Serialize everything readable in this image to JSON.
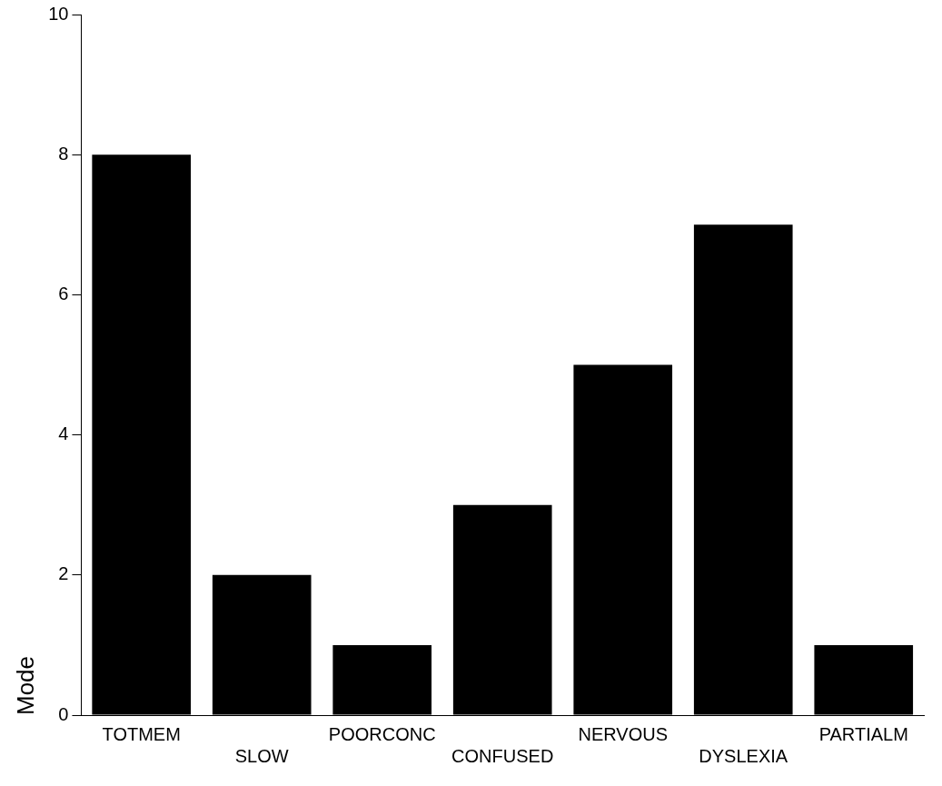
{
  "chart_data": {
    "type": "bar",
    "ylabel": "Mode",
    "categories": [
      "TOTMEM",
      "SLOW",
      "POORCONC",
      "CONFUSED",
      "NERVOUS",
      "DYSLEXIA",
      "PARTIALM"
    ],
    "values": [
      8,
      2,
      1,
      3,
      5,
      7,
      1
    ],
    "color": "#000000",
    "ylim": [
      0,
      10
    ],
    "yticks": [
      0,
      2,
      4,
      6,
      8,
      10
    ],
    "grid": false,
    "legend": false
  }
}
